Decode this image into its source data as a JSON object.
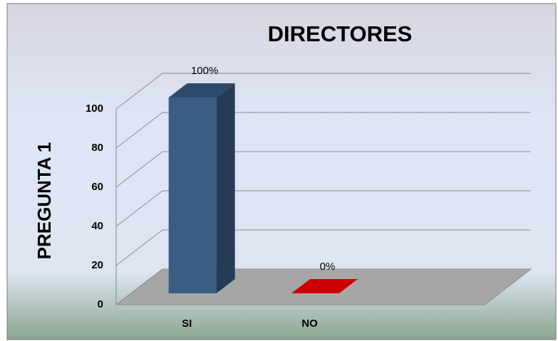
{
  "chart_data": {
    "type": "bar3d",
    "title": "DIRECTORES",
    "y_label": "PREGUNTA  1",
    "categories": [
      "SI",
      "NO"
    ],
    "values": [
      100,
      0
    ],
    "value_labels": [
      "100%",
      "0%"
    ],
    "colors": [
      "#3a5d84",
      "#cc0000"
    ],
    "ylim": [
      0,
      100
    ],
    "yticks": [
      0,
      20,
      40,
      60,
      80,
      100
    ],
    "grid": true
  }
}
